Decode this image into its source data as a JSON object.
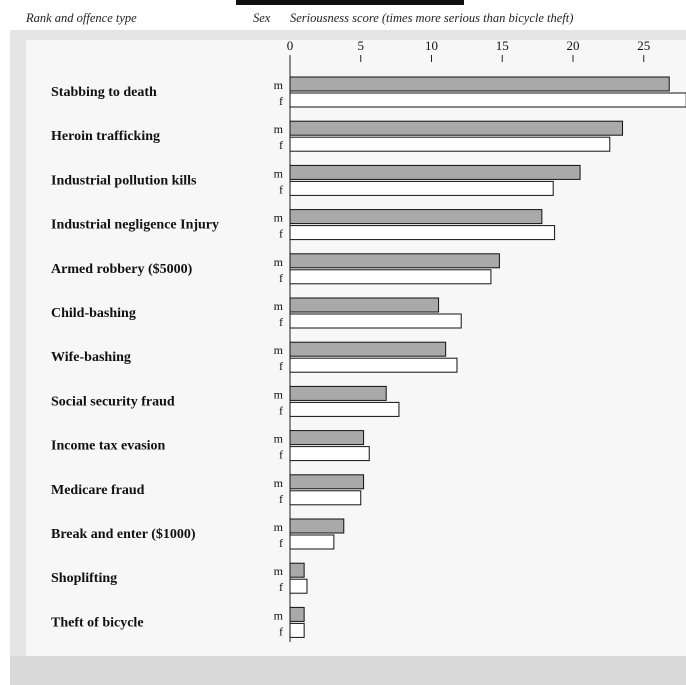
{
  "chart_data": {
    "type": "bar",
    "orientation": "horizontal",
    "title": "",
    "row_header": "Rank and offence type",
    "sex_header": "Sex",
    "xlabel": "Seriousness score (times more serious than bicycle theft)",
    "xlim": [
      0,
      28
    ],
    "xticks": [
      "0",
      "5",
      "10",
      "15",
      "20",
      "25"
    ],
    "xtick_values": [
      0,
      5,
      10,
      15,
      20,
      25
    ],
    "categories": [
      "Stabbing to death",
      "Heroin trafficking",
      "Industrial pollution kills",
      "Industrial negligence Injury",
      "Armed robbery ($5000)",
      "Child-bashing",
      "Wife-bashing",
      "Social security fraud",
      "Income tax evasion",
      "Medicare fraud",
      "Break and enter ($1000)",
      "Shoplifting",
      "Theft of bicycle"
    ],
    "series": [
      {
        "name": "m",
        "color": "#a9a9a9",
        "values": [
          26.8,
          23.5,
          20.5,
          17.8,
          14.8,
          10.5,
          11.0,
          6.8,
          5.2,
          5.2,
          3.8,
          1.0,
          1.0
        ]
      },
      {
        "name": "f",
        "color": "#ffffff",
        "values": [
          28.0,
          22.6,
          18.6,
          18.7,
          14.2,
          12.1,
          11.8,
          7.7,
          5.6,
          5.0,
          3.1,
          1.2,
          1.0
        ]
      }
    ],
    "legend": "per-row labels"
  }
}
